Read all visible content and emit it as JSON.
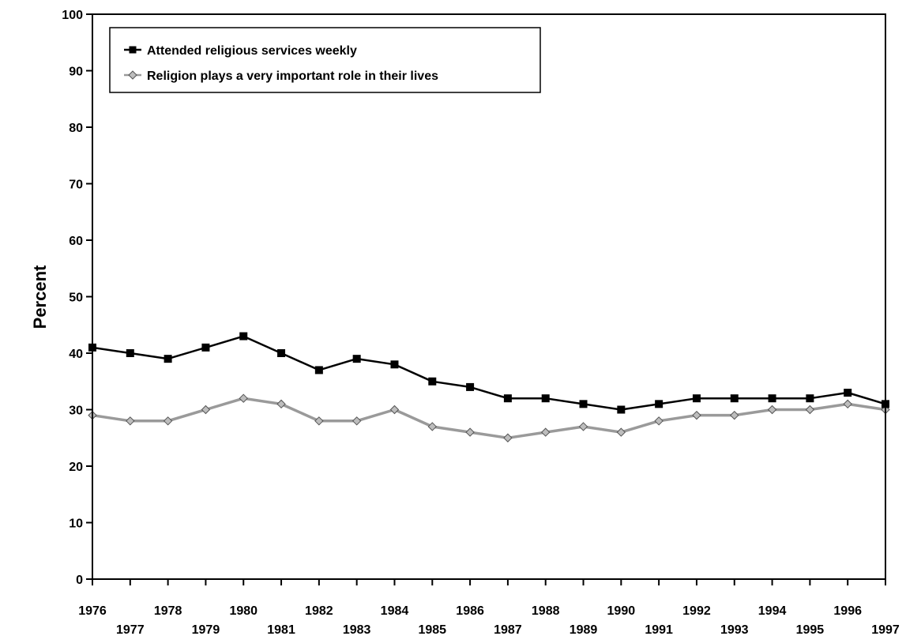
{
  "chart_data": {
    "type": "line",
    "title": "",
    "xlabel": "",
    "ylabel": "Percent",
    "ylim": [
      0,
      100
    ],
    "yticks": [
      0,
      10,
      20,
      30,
      40,
      50,
      60,
      70,
      80,
      90,
      100
    ],
    "y_tick_labels": [
      "0",
      "10",
      "20",
      "30",
      "40",
      "50",
      "60",
      "70",
      "80",
      "90",
      "100"
    ],
    "x": [
      1976,
      1977,
      1978,
      1979,
      1980,
      1981,
      1982,
      1983,
      1984,
      1985,
      1986,
      1987,
      1988,
      1989,
      1990,
      1991,
      1992,
      1993,
      1994,
      1995,
      1996,
      1997
    ],
    "x_tick_labels": [
      "1976",
      "1977",
      "1978",
      "1979",
      "1980",
      "1981",
      "1982",
      "1983",
      "1984",
      "1985",
      "1986",
      "1987",
      "1988",
      "1989",
      "1990",
      "1991",
      "1992",
      "1993",
      "1994",
      "1995",
      "1996",
      "1997"
    ],
    "grid": false,
    "legend_position": "top-left",
    "series": [
      {
        "name": "Attended religious services weekly",
        "color": "#000000",
        "marker": "square",
        "values": [
          41,
          40,
          39,
          41,
          43,
          40,
          37,
          39,
          38,
          35,
          34,
          32,
          32,
          31,
          30,
          31,
          32,
          32,
          32,
          32,
          33,
          31
        ]
      },
      {
        "name": "Religion plays a very important role in their lives",
        "color": "#9a9a9a",
        "marker": "diamond",
        "values": [
          29,
          28,
          28,
          30,
          32,
          31,
          28,
          28,
          30,
          27,
          26,
          25,
          26,
          27,
          26,
          28,
          29,
          29,
          30,
          30,
          31,
          30
        ]
      }
    ]
  }
}
